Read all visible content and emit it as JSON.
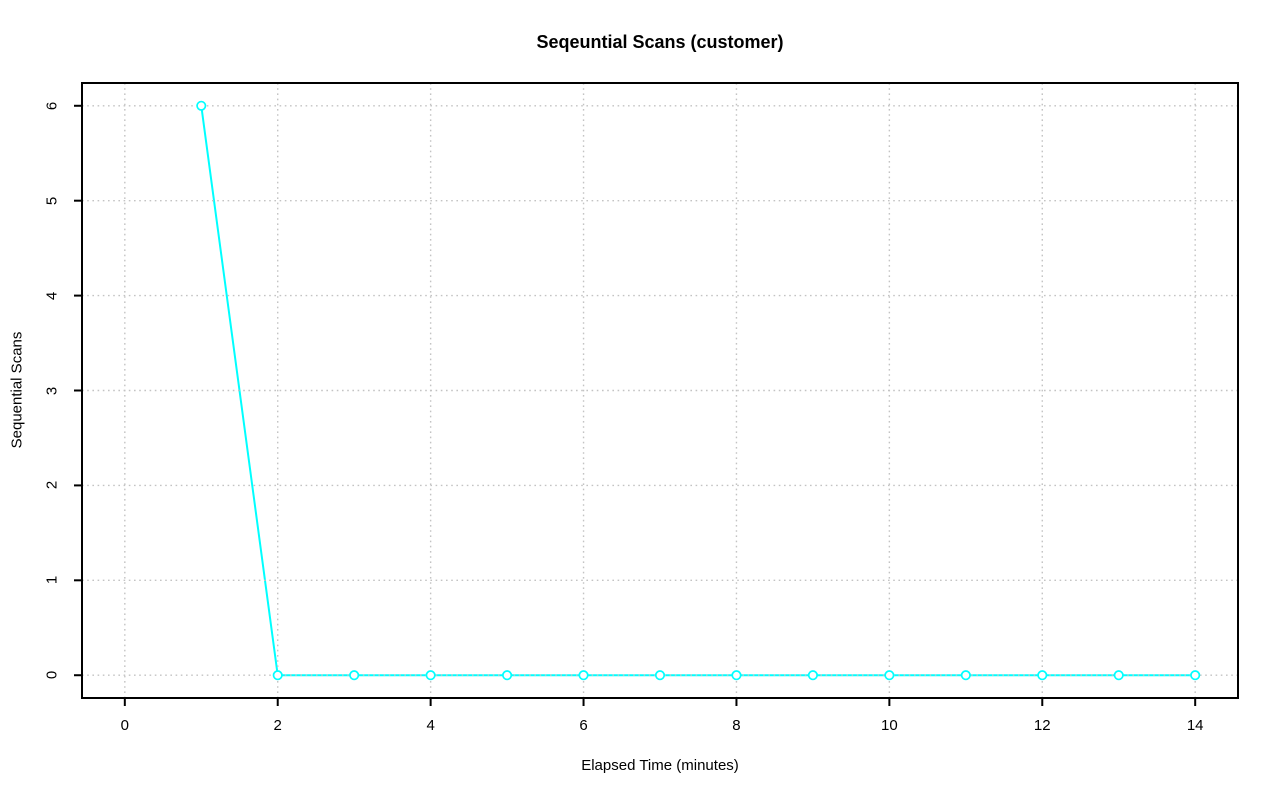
{
  "chart_data": {
    "type": "line",
    "title": "Seqeuntial Scans (customer)",
    "xlabel": "Elapsed Time (minutes)",
    "ylabel": "Sequential Scans",
    "x": [
      1,
      2,
      3,
      4,
      5,
      6,
      7,
      8,
      9,
      10,
      11,
      12,
      13,
      14
    ],
    "values": [
      6,
      0,
      0,
      0,
      0,
      0,
      0,
      0,
      0,
      0,
      0,
      0,
      0,
      0
    ],
    "xlim": [
      0,
      14
    ],
    "ylim": [
      0,
      6
    ],
    "pad_frac": 0.04,
    "xticks": [
      0,
      2,
      4,
      6,
      8,
      10,
      12,
      14
    ],
    "yticks": [
      0,
      1,
      2,
      3,
      4,
      5,
      6
    ],
    "grid": true,
    "grid_style": "dotted",
    "legend": "none",
    "marker": "open-circle",
    "colors": {
      "line": "#00ffff",
      "marker_stroke": "#00ffff",
      "marker_fill": "#ffffff",
      "grid": "#c3c3c3",
      "axis": "#000000",
      "text": "#000000",
      "background": "#ffffff"
    }
  }
}
